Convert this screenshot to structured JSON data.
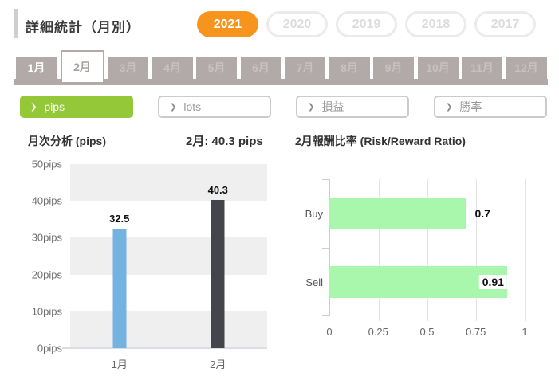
{
  "colors": {
    "accent_orange": "#f7941d",
    "tab_taupe": "#b2a9a9",
    "filter_green": "#94c838",
    "bar_blue": "#74b2e2",
    "bar_dark": "#43454a",
    "bar_green": "#a9f7ad"
  },
  "header": {
    "title": "詳細統計（月別）",
    "years": [
      {
        "label": "2021",
        "active": true
      },
      {
        "label": "2020",
        "active": false
      },
      {
        "label": "2019",
        "active": false
      },
      {
        "label": "2018",
        "active": false
      },
      {
        "label": "2017",
        "active": false
      }
    ]
  },
  "months": {
    "items": [
      {
        "label": "1月",
        "state": "filled"
      },
      {
        "label": "2月",
        "state": "active"
      },
      {
        "label": "3月",
        "state": "muted"
      },
      {
        "label": "4月",
        "state": "muted"
      },
      {
        "label": "5月",
        "state": "muted"
      },
      {
        "label": "6月",
        "state": "muted"
      },
      {
        "label": "7月",
        "state": "muted"
      },
      {
        "label": "8月",
        "state": "muted"
      },
      {
        "label": "9月",
        "state": "muted"
      },
      {
        "label": "10月",
        "state": "muted"
      },
      {
        "label": "11月",
        "state": "muted"
      },
      {
        "label": "12月",
        "state": "muted"
      }
    ]
  },
  "filters": {
    "chevron": "❯",
    "items": [
      {
        "label": "pips",
        "active": true
      },
      {
        "label": "lots",
        "active": false
      },
      {
        "label": "損益",
        "active": false
      },
      {
        "label": "勝率",
        "active": false
      }
    ]
  },
  "sections": {
    "monthly_title": "月次分析 (pips)",
    "monthly_subtitle": "2月: 40.3 pips",
    "rr_title": "2月報酬比率 (Risk/Reward Ratio)"
  },
  "chart_data": [
    {
      "type": "bar",
      "title": "月次分析 (pips)",
      "categories": [
        "1月",
        "2月"
      ],
      "values": [
        32.5,
        40.3
      ],
      "bar_colors": [
        "#74b2e2",
        "#43454a"
      ],
      "yticks": [
        "50pips",
        "40pips",
        "30pips",
        "20pips",
        "10pips",
        "0pips"
      ],
      "ylim": [
        0,
        50
      ],
      "grid": "horizontal-bands"
    },
    {
      "type": "bar",
      "orientation": "horizontal",
      "title": "2月報酬比率 (Risk/Reward Ratio)",
      "categories": [
        "Buy",
        "Sell"
      ],
      "values": [
        0.7,
        0.91
      ],
      "bar_color": "#a9f7ad",
      "xticks": [
        0,
        0.25,
        0.5,
        0.75,
        1
      ],
      "xlim": [
        0,
        1
      ],
      "grid": "vertical"
    }
  ]
}
